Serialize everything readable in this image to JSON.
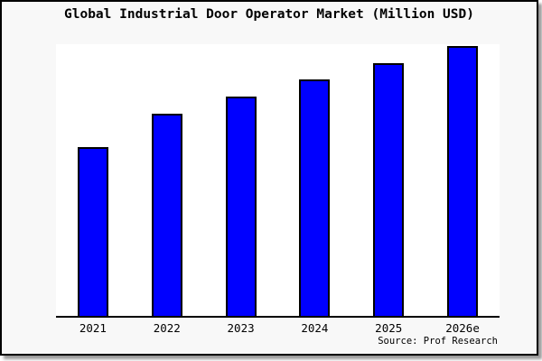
{
  "title": "Global Industrial Door Operator Market (Million USD)",
  "source": "Source: Prof Research",
  "colors": {
    "bar_fill": "#0000ff",
    "bar_border": "#000000",
    "card_background": "#f8f8f8",
    "plot_background": "#ffffff",
    "frame_border": "#000000",
    "shadow": "#9a9a9a",
    "text": "#000000"
  },
  "chart_data": {
    "type": "bar",
    "title": "Global Industrial Door Operator Market (Million USD)",
    "categories": [
      "2021",
      "2022",
      "2023",
      "2024",
      "2025",
      "2026e"
    ],
    "values": [
      62.7,
      75.0,
      81.3,
      87.7,
      93.7,
      100.0
    ],
    "values_unit": "relative bar height, % of tallest (2026e) bar; chart shows no numeric y-axis labels",
    "xlabel": "",
    "ylabel": "",
    "y_axis": "none (no line, ticks, labels or gridlines)",
    "legend": "none",
    "grid": false,
    "source": "Source: Prof Research"
  }
}
